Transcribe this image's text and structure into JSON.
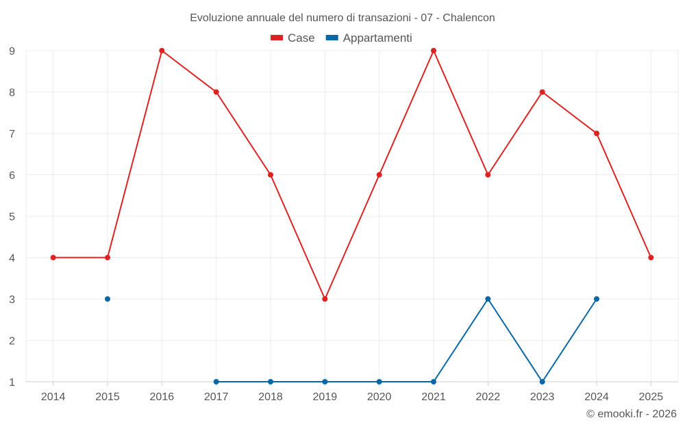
{
  "chart_data": {
    "type": "line",
    "title": "Evoluzione annuale del numero di transazioni - 07 - Chalencon",
    "categories": [
      "2014",
      "2015",
      "2016",
      "2017",
      "2018",
      "2019",
      "2020",
      "2021",
      "2022",
      "2023",
      "2024",
      "2025"
    ],
    "series": [
      {
        "name": "Case",
        "color": "#dd2222",
        "values": [
          4,
          4,
          9,
          8,
          6,
          3,
          6,
          9,
          6,
          8,
          7,
          4
        ]
      },
      {
        "name": "Appartamenti",
        "color": "#0868a6",
        "values": [
          null,
          3,
          null,
          1,
          1,
          1,
          1,
          1,
          3,
          1,
          3,
          null
        ]
      }
    ],
    "yticks": [
      "1",
      "2",
      "3",
      "4",
      "5",
      "6",
      "7",
      "8",
      "9"
    ],
    "ylim": [
      1,
      9
    ],
    "xlabel": "",
    "ylabel": "",
    "grid": true,
    "legend": "top-center"
  },
  "credit": "© emooki.fr - 2026"
}
